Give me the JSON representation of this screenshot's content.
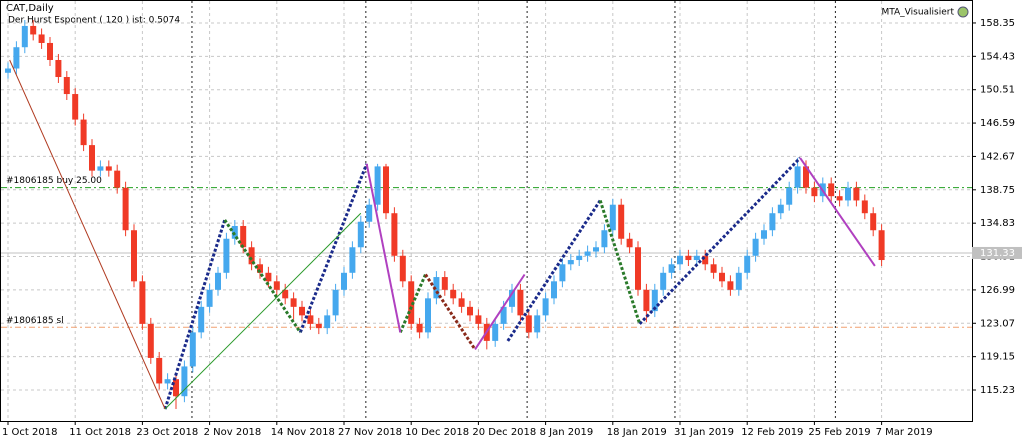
{
  "chart_data": {
    "type": "candlestick",
    "title": "CAT,Daily",
    "subtitle": "Der Hurst Esponent ( 120 ) ist: 0.5074",
    "indicator": "MTA_Visualisiert",
    "categories": [
      "1 Oct 2018",
      null,
      null,
      null,
      null,
      null,
      null,
      null,
      "11 Oct 2018",
      null,
      null,
      null,
      null,
      null,
      null,
      null,
      "23 Oct 2018",
      null,
      null,
      null,
      null,
      null,
      null,
      null,
      "2 Nov 2018",
      null,
      null,
      null,
      null,
      null,
      null,
      null,
      "14 Nov 2018",
      null,
      null,
      null,
      null,
      null,
      null,
      null,
      "27 Nov 2018",
      null,
      null,
      null,
      null,
      null,
      null,
      null,
      "10 Dec 2018",
      null,
      null,
      null,
      null,
      null,
      null,
      null,
      "20 Dec 2018",
      null,
      null,
      null,
      null,
      null,
      null,
      null,
      "8 Jan 2019",
      null,
      null,
      null,
      null,
      null,
      null,
      null,
      "18 Jan 2019",
      null,
      null,
      null,
      null,
      null,
      null,
      null,
      "31 Jan 2019",
      null,
      null,
      null,
      null,
      null,
      null,
      null,
      "12 Feb 2019",
      null,
      null,
      null,
      null,
      null,
      null,
      null,
      "25 Feb 2019",
      null,
      null,
      null,
      null,
      null,
      null,
      null,
      "7 Mar 2019"
    ],
    "candles": [
      [
        152.5,
        153.7,
        151.8,
        153
      ],
      [
        153,
        156.2,
        152.3,
        155.5
      ],
      [
        155.5,
        158.7,
        154.8,
        158
      ],
      [
        158,
        158.7,
        156.3,
        157
      ],
      [
        157,
        157.7,
        155.3,
        156
      ],
      [
        156,
        156.7,
        153.3,
        154
      ],
      [
        154,
        154.7,
        151.3,
        152
      ],
      [
        152,
        152.7,
        149.3,
        150
      ],
      [
        150,
        150.7,
        146.3,
        147
      ],
      [
        147,
        147.7,
        143.3,
        144
      ],
      [
        144,
        144.7,
        140.3,
        141
      ],
      [
        141,
        142.2,
        140.3,
        141.5
      ],
      [
        141.5,
        142.2,
        140.3,
        141
      ],
      [
        141,
        141.7,
        138.3,
        139
      ],
      [
        139,
        139.7,
        133.3,
        134
      ],
      [
        134,
        134.7,
        127.3,
        128
      ],
      [
        128,
        128.7,
        122.3,
        123
      ],
      [
        123,
        123.7,
        118.3,
        119
      ],
      [
        119,
        119.7,
        115.3,
        116
      ],
      [
        116,
        117.2,
        115.3,
        116.5
      ],
      [
        116.5,
        117.2,
        113,
        114.5
      ],
      [
        114.5,
        118.7,
        113.8,
        118
      ],
      [
        118,
        122.7,
        117.3,
        122
      ],
      [
        122,
        125.7,
        121.3,
        125
      ],
      [
        125,
        127.7,
        124.3,
        127
      ],
      [
        127,
        129.7,
        126.3,
        129
      ],
      [
        129,
        133.7,
        128.3,
        133
      ],
      [
        133,
        135.2,
        132.3,
        134.5
      ],
      [
        134.5,
        135.2,
        131.3,
        132
      ],
      [
        132,
        132.7,
        129.3,
        130
      ],
      [
        130,
        130.7,
        128.3,
        129
      ],
      [
        129,
        129.7,
        127.3,
        128
      ],
      [
        128,
        128.7,
        126.3,
        127
      ],
      [
        127,
        127.7,
        125.3,
        126
      ],
      [
        126,
        126.7,
        123.5,
        125
      ],
      [
        125,
        125.7,
        123.3,
        124
      ],
      [
        124,
        124.7,
        122.3,
        123
      ],
      [
        123,
        123.7,
        121.8,
        122.5
      ],
      [
        122.5,
        124.7,
        121.8,
        124
      ],
      [
        124,
        127.7,
        123.3,
        127
      ],
      [
        127,
        129.7,
        126.3,
        129
      ],
      [
        129,
        132.7,
        128.3,
        132
      ],
      [
        132,
        135.7,
        131.3,
        135
      ],
      [
        135,
        137.7,
        134.3,
        137
      ],
      [
        137,
        141.8,
        136.3,
        141.5
      ],
      [
        141.5,
        141.8,
        135.3,
        136
      ],
      [
        136,
        136.7,
        130.3,
        131
      ],
      [
        131,
        131.7,
        127.3,
        128
      ],
      [
        128,
        128.7,
        122.3,
        123
      ],
      [
        123,
        123.7,
        121.3,
        122
      ],
      [
        122,
        126.7,
        121.3,
        126
      ],
      [
        126,
        129.2,
        125.3,
        128.5
      ],
      [
        128.5,
        129.2,
        126.3,
        127
      ],
      [
        127,
        127.7,
        125.3,
        126
      ],
      [
        126,
        126.7,
        124.3,
        125
      ],
      [
        125,
        125.7,
        123.3,
        124
      ],
      [
        124,
        124.7,
        122.3,
        123
      ],
      [
        123,
        123.7,
        120,
        121
      ],
      [
        121,
        123.7,
        120.3,
        123
      ],
      [
        123,
        125.7,
        122.3,
        125
      ],
      [
        125,
        127.7,
        124.3,
        127
      ],
      [
        127,
        127.7,
        123.3,
        124
      ],
      [
        124,
        124.7,
        121.3,
        122
      ],
      [
        122,
        124.7,
        121.3,
        124
      ],
      [
        124,
        126.7,
        123.3,
        126
      ],
      [
        126,
        128.7,
        125.3,
        128
      ],
      [
        128,
        130.7,
        127.3,
        130
      ],
      [
        130,
        131.2,
        129.3,
        130.5
      ],
      [
        130.5,
        131.7,
        129.8,
        131
      ],
      [
        131,
        132.2,
        130.3,
        131.5
      ],
      [
        131.5,
        132.7,
        130.8,
        132
      ],
      [
        132,
        134.7,
        131.3,
        134
      ],
      [
        134,
        137.7,
        133.3,
        137
      ],
      [
        137,
        137.7,
        132.3,
        133
      ],
      [
        133,
        133.7,
        131.3,
        132
      ],
      [
        132,
        132.7,
        126.3,
        127
      ],
      [
        127,
        127.7,
        123.2,
        124.5
      ],
      [
        124.5,
        127.7,
        123.8,
        127
      ],
      [
        127,
        129.7,
        126.3,
        129
      ],
      [
        129,
        130.7,
        128.3,
        130
      ],
      [
        130,
        131.7,
        129.3,
        131
      ],
      [
        131,
        131.7,
        129.8,
        130.5
      ],
      [
        130.5,
        131.7,
        129.8,
        131
      ],
      [
        131,
        131.7,
        129.3,
        130
      ],
      [
        130,
        130.7,
        128.3,
        129
      ],
      [
        129,
        129.7,
        127.3,
        128
      ],
      [
        128,
        128.7,
        126.3,
        127
      ],
      [
        127,
        129.7,
        126.3,
        129
      ],
      [
        129,
        131.7,
        128.3,
        131
      ],
      [
        131,
        133.7,
        130.3,
        133
      ],
      [
        133,
        134.7,
        132.3,
        134
      ],
      [
        134,
        136.7,
        133.3,
        136
      ],
      [
        136,
        137.7,
        135.3,
        137
      ],
      [
        137,
        139.7,
        136.3,
        139
      ],
      [
        139,
        142.5,
        138.3,
        141.5
      ],
      [
        141.5,
        142.2,
        138.3,
        139
      ],
      [
        139,
        139.7,
        137.3,
        138
      ],
      [
        138,
        140.2,
        137.3,
        139.5
      ],
      [
        139.5,
        140.2,
        137.3,
        138
      ],
      [
        138,
        138.7,
        136.8,
        137.5
      ],
      [
        137.5,
        139.7,
        136.8,
        139
      ],
      [
        139,
        139.7,
        136.8,
        137.5
      ],
      [
        137.5,
        138.2,
        135.3,
        136
      ],
      [
        136,
        136.7,
        133.3,
        134
      ],
      [
        134,
        134.7,
        129.8,
        130.5
      ]
    ],
    "up_color": "#45a8ee",
    "down_color": "#f03a26",
    "ylim": [
      111.59,
      160.93
    ],
    "yticks": [
      115.23,
      119.15,
      123.07,
      126.99,
      130.91,
      134.83,
      138.75,
      142.67,
      146.59,
      150.51,
      154.43,
      158.35
    ],
    "grid": true,
    "separators": [
      21.9,
      42.6,
      61.8,
      79.4,
      98.5
    ],
    "price": 131.33,
    "levels": [
      {
        "label": "#1806185 buy 25.00",
        "value": 139,
        "color": "#22a022"
      },
      {
        "label": "#1806185 sl",
        "value": 122.6,
        "color": "#f0a070"
      }
    ],
    "overlays": [
      {
        "color": "#1a2a8a",
        "style": "dotted",
        "x": [
          18.7,
          25.8
        ],
        "y": [
          113,
          135.2
        ]
      },
      {
        "color": "#1a2a8a",
        "style": "dotted",
        "x": [
          34.8,
          42.7
        ],
        "y": [
          122,
          141.8
        ]
      },
      {
        "color": "#1a2a8a",
        "style": "dotted",
        "x": [
          59.5,
          70.5
        ],
        "y": [
          121,
          137.5
        ]
      },
      {
        "color": "#1a2a8a",
        "style": "dotted",
        "x": [
          75.2,
          94.3
        ],
        "y": [
          123,
          142.5
        ]
      },
      {
        "color": "#2a7a2a",
        "style": "dotted",
        "x": [
          25.8,
          34.8
        ],
        "y": [
          135.2,
          122
        ]
      },
      {
        "color": "#2a7a2a",
        "style": "dotted",
        "x": [
          46.7,
          49.7
        ],
        "y": [
          122,
          128.8
        ]
      },
      {
        "color": "#2a7a2a",
        "style": "dotted",
        "x": [
          70.5,
          75.2
        ],
        "y": [
          137.5,
          123
        ]
      },
      {
        "color": "#8a2a1a",
        "style": "dotted",
        "x": [
          49.7,
          55.6
        ],
        "y": [
          128.8,
          120
        ]
      },
      {
        "color": "#b040c0",
        "style": "solid",
        "x": [
          42.7,
          46.7
        ],
        "y": [
          141.8,
          122
        ]
      },
      {
        "color": "#b040c0",
        "style": "solid",
        "x": [
          55.6,
          61.5
        ],
        "y": [
          120,
          128.8
        ]
      },
      {
        "color": "#b040c0",
        "style": "solid",
        "x": [
          94.3,
          103.2
        ],
        "y": [
          142.5,
          129.8
        ]
      },
      {
        "color": "#b03a20",
        "style": "thin",
        "x": [
          0.2,
          18.7
        ],
        "y": [
          154,
          113
        ]
      },
      {
        "color": "#2a9a2a",
        "style": "thin",
        "x": [
          18.7,
          42
        ],
        "y": [
          113,
          136
        ]
      }
    ]
  }
}
